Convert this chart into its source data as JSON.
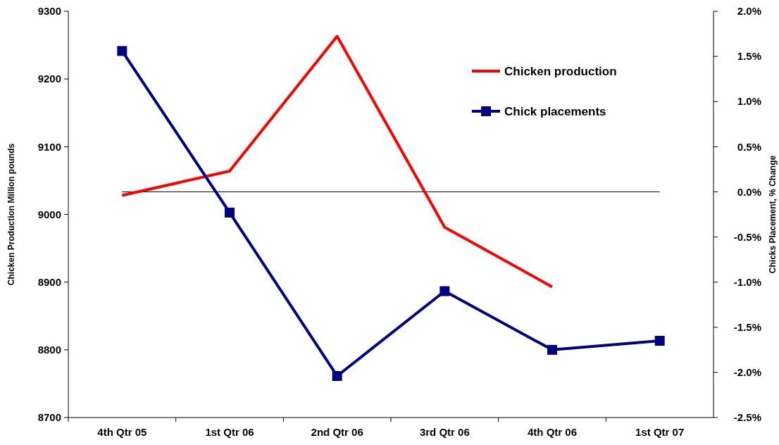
{
  "chart_data": {
    "type": "line",
    "ylabel": "Chicken Production Million pounds",
    "y2label": "Chicks Placement, % Change",
    "categories": [
      "4th Qtr 05",
      "1st Qtr 06",
      "2nd Qtr 06",
      "3rd Qtr 06",
      "4th Qtr 06",
      "1st Qtr 07"
    ],
    "series": [
      {
        "name": "Chicken production",
        "color": "#ff0000",
        "values": [
          9028,
          9064,
          9263,
          8981,
          8893,
          null
        ],
        "marker": "none"
      },
      {
        "name": "Chick placements",
        "color": "#000080",
        "values": [
          1.56,
          -0.23,
          -2.04,
          -1.1,
          -1.75,
          -1.65
        ],
        "axis": "y2",
        "marker": "square"
      }
    ],
    "ylim": [
      8700,
      9300
    ],
    "yticks": [
      8700,
      8800,
      8900,
      9000,
      9100,
      9200,
      9300
    ],
    "y2lim": [
      -2.5,
      2.0
    ],
    "y2ticks": [
      {
        "value": -2.5,
        "label": "-2.5%"
      },
      {
        "value": -2.0,
        "label": "-2.0%"
      },
      {
        "value": -1.5,
        "label": "-1.5%"
      },
      {
        "value": -1.0,
        "label": "-1.0%"
      },
      {
        "value": -0.5,
        "label": "-0.5%"
      },
      {
        "value": 0,
        "label": "0.0%"
      },
      {
        "value": 0.5,
        "label": "0.5%"
      },
      {
        "value": 1.0,
        "label": "1.0%"
      },
      {
        "value": 1.5,
        "label": "1.5%"
      },
      {
        "value": 2.0,
        "label": "2.0%"
      }
    ],
    "ref_lines": [
      {
        "axis": "y2",
        "value": 0,
        "color": "#000000"
      }
    ],
    "grid": false,
    "legend": "top right",
    "line_style": "solid"
  }
}
